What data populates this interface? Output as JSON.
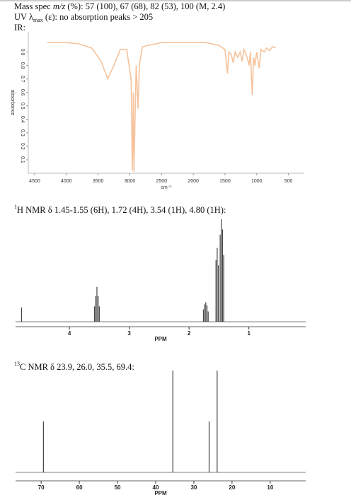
{
  "header_lines": [
    [
      "Mass spec ",
      "m/z",
      " (%): 57 (100), 67 (68), 82 (53), 100 (M, 2.4)"
    ],
    [
      "UV λ",
      "max",
      " (ε): no absorption peaks > 205"
    ]
  ],
  "chart_data": [
    {
      "type": "line",
      "title": [
        "IR:"
      ],
      "color": "#f5c39c",
      "x_label": "cm⁻¹",
      "y_label": "absorbance",
      "xlim": [
        4600,
        250
      ],
      "ylim": [
        0,
        1.05
      ],
      "xticks": [
        4500,
        4000,
        3500,
        3000,
        2500,
        2000,
        1500,
        1000,
        500
      ],
      "yticks": [
        0.1,
        0.2,
        0.3,
        0.4,
        0.5,
        0.6,
        0.7,
        0.8,
        0.9
      ],
      "x": [
        4300,
        4000,
        3800,
        3600,
        3450,
        3350,
        3250,
        3150,
        3050,
        2980,
        2960,
        2945,
        2935,
        2900,
        2870,
        2850,
        2800,
        2700,
        2500,
        2000,
        1800,
        1700,
        1600,
        1500,
        1460,
        1440,
        1400,
        1370,
        1340,
        1300,
        1260,
        1230,
        1200,
        1150,
        1120,
        1100,
        1070,
        1050,
        1030,
        1000,
        960,
        930,
        880,
        840,
        800,
        750,
        700
      ],
      "values": [
        0.97,
        0.97,
        0.96,
        0.93,
        0.83,
        0.7,
        0.8,
        0.92,
        0.92,
        0.7,
        0.02,
        0.6,
        0.01,
        0.8,
        0.48,
        0.8,
        0.94,
        0.95,
        0.97,
        0.97,
        0.97,
        0.96,
        0.95,
        0.92,
        0.74,
        0.9,
        0.88,
        0.82,
        0.9,
        0.86,
        0.9,
        0.83,
        0.92,
        0.86,
        0.8,
        0.9,
        0.58,
        0.86,
        0.8,
        0.9,
        0.78,
        0.92,
        0.9,
        0.93,
        0.91,
        0.94,
        0.93
      ]
    },
    {
      "type": "stick",
      "title": [
        "1",
        "H NMR δ 1.45-1.55 (6H), 1.72 (4H), 3.54 (1H), 4.80 (1H):"
      ],
      "color": "#444444",
      "x_label": "PPM",
      "xlim": [
        4.9,
        0.05
      ],
      "ylim": [
        0,
        100
      ],
      "xticks": [
        4,
        3,
        2,
        1
      ],
      "x": [
        4.8,
        3.58,
        3.56,
        3.54,
        3.52,
        3.5,
        1.76,
        1.74,
        1.72,
        1.7,
        1.68,
        1.55,
        1.53,
        1.51,
        1.48,
        1.46,
        1.44,
        1.42
      ],
      "values": [
        14,
        15,
        25,
        34,
        25,
        15,
        12,
        17,
        19,
        16,
        10,
        60,
        72,
        55,
        85,
        100,
        90,
        65
      ]
    },
    {
      "type": "stick",
      "title": [
        "13",
        "C NMR δ 23.9, 26.0, 35.5, 69.4:"
      ],
      "color": "#444444",
      "x_label": "PPM",
      "xlim": [
        76.7,
        0.7
      ],
      "ylim": [
        0,
        100
      ],
      "xticks": [
        70,
        60,
        50,
        40,
        30,
        20,
        10
      ],
      "x": [
        69.4,
        35.5,
        26.0,
        23.9
      ],
      "values": [
        50,
        100,
        50,
        100
      ]
    }
  ]
}
